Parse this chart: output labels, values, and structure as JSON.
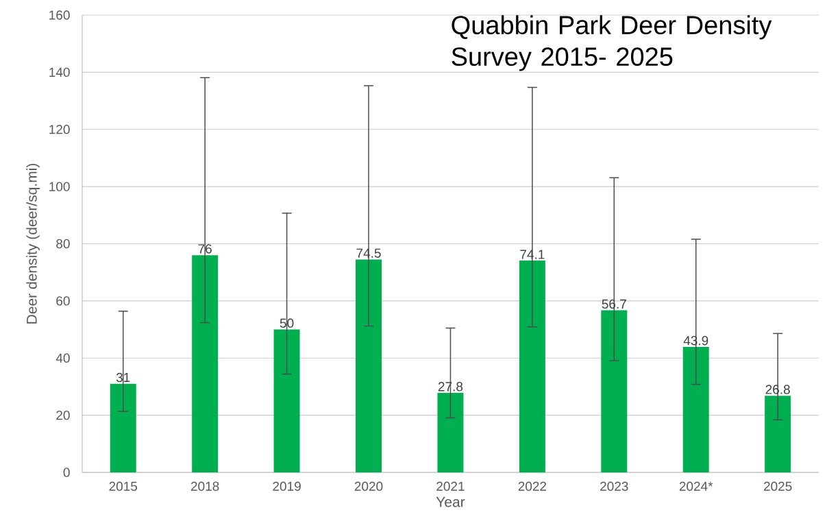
{
  "chart_data": {
    "type": "bar",
    "title": "Quabbin Park Deer Density Survey 2015- 2025",
    "xlabel": "Year",
    "ylabel": "Deer density (deer/sq.mi)",
    "categories": [
      "2015",
      "2018",
      "2019",
      "2020",
      "2021",
      "2022",
      "2023",
      "2024*",
      "2025"
    ],
    "values": [
      31,
      76,
      50,
      74.5,
      27.8,
      74.1,
      56.7,
      43.9,
      26.8
    ],
    "errors": [
      [
        21.3,
        56.4
      ],
      [
        52.4,
        138.1
      ],
      [
        34.4,
        90.7
      ],
      [
        51.2,
        135.3
      ],
      [
        19.1,
        50.5
      ],
      [
        50.9,
        134.7
      ],
      [
        39.1,
        103.1
      ],
      [
        30.8,
        81.6
      ],
      [
        18.4,
        48.6
      ]
    ],
    "color": "#00b050",
    "ylim": [
      0,
      160
    ],
    "yticks": [
      0,
      20,
      40,
      60,
      80,
      100,
      120,
      140,
      160
    ],
    "grid": "y",
    "data_labels": true
  }
}
